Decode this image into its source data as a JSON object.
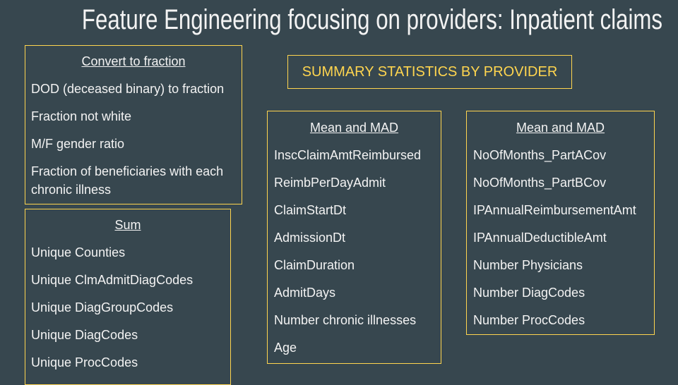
{
  "title": "Feature Engineering focusing on providers: Inpatient claims",
  "summary_label": "SUMMARY STATISTICS BY PROVIDER",
  "fraction_box": {
    "heading": "Convert to fraction",
    "items": [
      "DOD (deceased binary) to fraction",
      "Fraction not white",
      "M/F gender ratio",
      "Fraction of beneficiaries with each chronic illness"
    ]
  },
  "sum_box": {
    "heading": "Sum",
    "items": [
      "Unique Counties",
      "Unique ClmAdmitDiagCodes",
      "Unique DiagGroupCodes",
      "Unique DiagCodes",
      "Unique ProcCodes"
    ]
  },
  "mad_box_1": {
    "heading": "Mean and MAD",
    "items": [
      "InscClaimAmtReimbursed",
      "ReimbPerDayAdmit",
      "ClaimStartDt",
      "AdmissionDt",
      "ClaimDuration",
      "AdmitDays",
      "Number chronic illnesses",
      "Age"
    ]
  },
  "mad_box_2": {
    "heading": "Mean and MAD",
    "items": [
      "NoOfMonths_PartACov",
      "NoOfMonths_PartBCov",
      "IPAnnualReimbursementAmt",
      "IPAnnualDeductibleAmt",
      "Number Physicians",
      "Number DiagCodes",
      "Number ProcCodes"
    ]
  }
}
